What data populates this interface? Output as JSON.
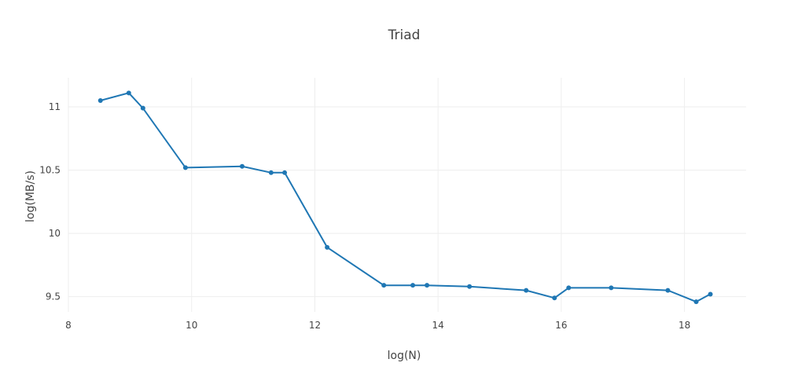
{
  "chart_data": {
    "type": "line",
    "title": "Triad",
    "xlabel": "log(N)",
    "ylabel": "log(MB/s)",
    "xlim": [
      8,
      19
    ],
    "ylim": [
      9.38,
      11.23
    ],
    "xticks": [
      "8",
      "10",
      "12",
      "14",
      "16",
      "18"
    ],
    "yticks": [
      "9.5",
      "10",
      "10.5",
      "11"
    ],
    "grid": true,
    "color": "#1f77b4",
    "series": [
      {
        "x": [
          8.52,
          8.98,
          9.21,
          9.9,
          10.82,
          11.29,
          11.51,
          12.2,
          13.12,
          13.59,
          13.82,
          14.51,
          15.43,
          15.89,
          16.12,
          16.81,
          17.73,
          18.19,
          18.42
        ],
        "y": [
          11.05,
          11.11,
          10.99,
          10.52,
          10.53,
          10.48,
          10.48,
          9.89,
          9.59,
          9.59,
          9.59,
          9.58,
          9.55,
          9.49,
          9.57,
          9.57,
          9.55,
          9.46,
          9.52
        ]
      }
    ]
  }
}
